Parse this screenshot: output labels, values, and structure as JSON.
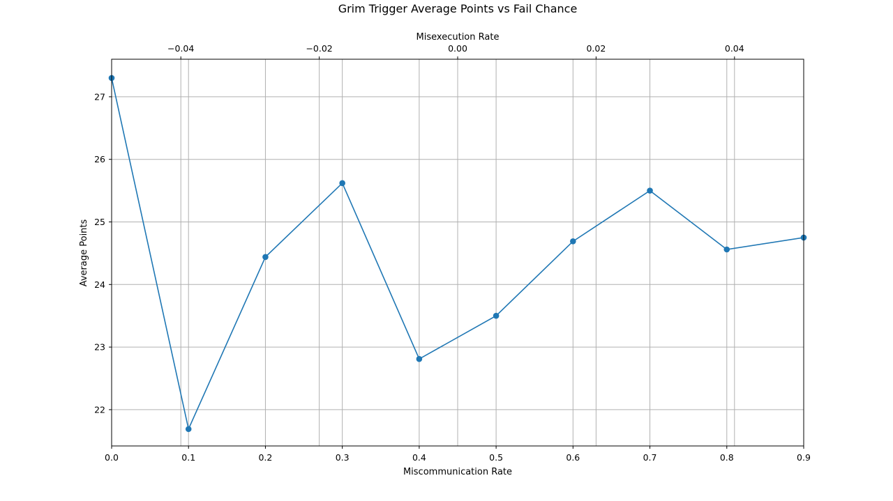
{
  "chart_data": {
    "type": "line",
    "title": "Grim Trigger Average Points vs Fail Chance",
    "xlabel": "Miscommunication Rate",
    "ylabel": "Average Points",
    "x2label": "Misexecution Rate",
    "x": [
      0.0,
      0.1,
      0.2,
      0.3,
      0.4,
      0.5,
      0.6,
      0.7,
      0.8,
      0.9
    ],
    "series": [
      {
        "values": [
          27.3,
          21.69,
          24.44,
          25.62,
          22.81,
          23.5,
          24.69,
          25.5,
          24.56,
          24.75
        ]
      }
    ],
    "xlim": [
      0.0,
      0.9
    ],
    "ylim": [
      21.42,
      27.6
    ],
    "x2lim": [
      -0.05,
      0.05
    ],
    "x_ticks": [
      "0.0",
      "0.1",
      "0.2",
      "0.3",
      "0.4",
      "0.5",
      "0.6",
      "0.7",
      "0.8",
      "0.9"
    ],
    "y_ticks": [
      "22",
      "23",
      "24",
      "25",
      "26",
      "27"
    ],
    "x2_ticks": [
      "−0.04",
      "−0.02",
      "0.00",
      "0.02",
      "0.04"
    ],
    "x2_tick_values": [
      -0.04,
      -0.02,
      0.0,
      0.02,
      0.04
    ],
    "grid": true,
    "line_color": "#1f77b4",
    "grid_color": "#b0b0b0"
  }
}
